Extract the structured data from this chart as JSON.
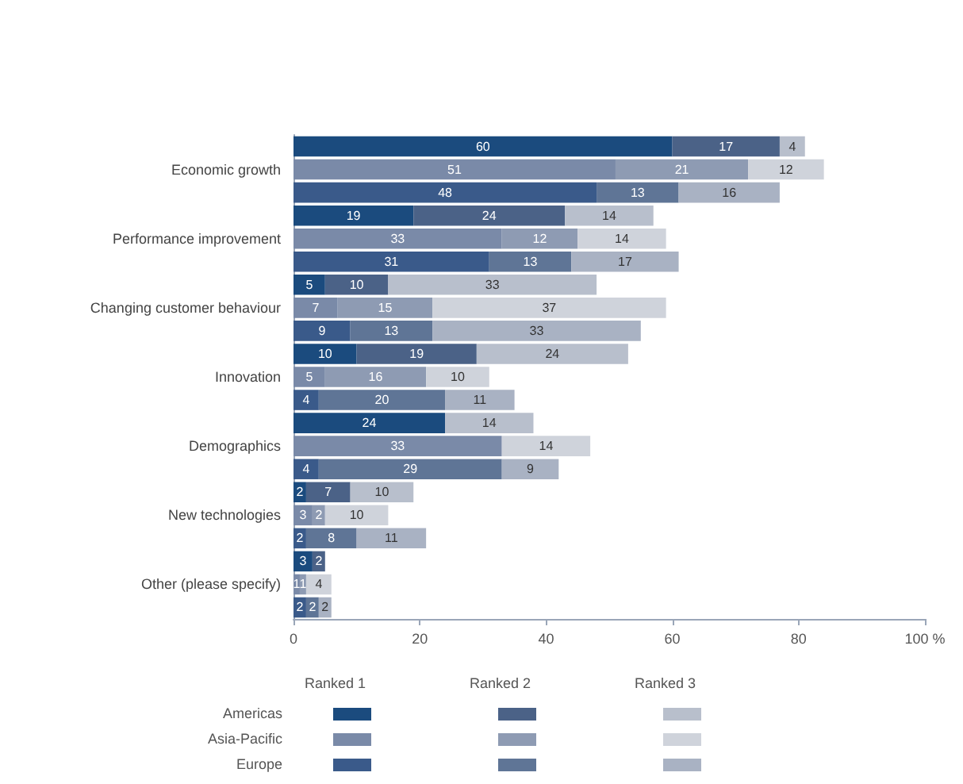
{
  "chart_data": {
    "type": "bar",
    "orientation": "horizontal",
    "stacked": true,
    "data_labels": true,
    "grid": false,
    "legend": "bottom",
    "categories": [
      null,
      "Economic growth",
      null,
      null,
      "Performance improvement",
      null,
      null,
      "Changing customer behaviour",
      null,
      null,
      "Innovation",
      null,
      null,
      "Demographics",
      null,
      null,
      "New technologies",
      null,
      null,
      "Other (please specify)",
      null
    ],
    "xlim": [
      0,
      100
    ],
    "xticks": [
      0,
      20,
      40,
      60,
      80,
      {
        "value": 100,
        "label": "100 %"
      }
    ],
    "annotations": [
      "Americas",
      "Asia-Pacific",
      "Europe"
    ],
    "series": [
      {
        "name": "Ranked 1",
        "values": [
          60,
          51,
          48,
          19,
          33,
          31,
          5,
          7,
          9,
          10,
          5,
          4,
          24,
          33,
          4,
          2,
          3,
          2,
          3,
          1,
          2
        ],
        "colors": [
          "#1b4b7e",
          "#7a8aa8",
          "#3a5a8a",
          "#1b4b7e",
          "#7a8aa8",
          "#3a5a8a",
          "#1b4b7e",
          "#7a8aa8",
          "#3a5a8a",
          "#1b4b7e",
          "#7a8aa8",
          "#3a5a8a",
          "#1b4b7e",
          "#7a8aa8",
          "#3a5a8a",
          "#1b4b7e",
          "#7a8aa8",
          "#3a5a8a",
          "#1b4b7e",
          "#7a8aa8",
          "#3a5a8a"
        ]
      },
      {
        "name": "Ranked 2",
        "values": [
          17,
          21,
          13,
          24,
          12,
          13,
          10,
          15,
          13,
          19,
          16,
          20,
          null,
          null,
          29,
          7,
          2,
          8,
          2,
          1,
          2
        ],
        "colors": [
          "#4b6287",
          "#8e9bb3",
          "#5f7596",
          "#4b6287",
          "#8e9bb3",
          "#5f7596",
          "#4b6287",
          "#8e9bb3",
          "#5f7596",
          "#4b6287",
          "#8e9bb3",
          "#5f7596",
          "#4b6287",
          "#8e9bb3",
          "#5f7596",
          "#4b6287",
          "#8e9bb3",
          "#5f7596",
          "#4b6287",
          "#8e9bb3",
          "#5f7596"
        ]
      },
      {
        "name": "Ranked 3",
        "values": [
          4,
          12,
          16,
          14,
          14,
          17,
          33,
          37,
          33,
          24,
          10,
          11,
          14,
          14,
          9,
          10,
          10,
          11,
          null,
          4,
          2
        ],
        "colors": [
          "#b8bfcc",
          "#cfd3db",
          "#a9b2c3",
          "#b8bfcc",
          "#cfd3db",
          "#a9b2c3",
          "#b8bfcc",
          "#cfd3db",
          "#a9b2c3",
          "#b8bfcc",
          "#cfd3db",
          "#a9b2c3",
          "#b8bfcc",
          "#cfd3db",
          "#a9b2c3",
          "#b8bfcc",
          "#cfd3db",
          "#a9b2c3",
          "#b8bfcc",
          "#cfd3db",
          "#a9b2c3"
        ]
      }
    ]
  }
}
